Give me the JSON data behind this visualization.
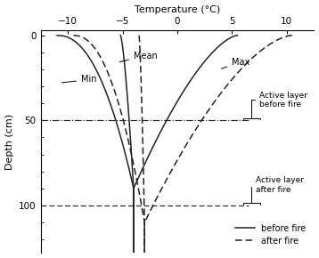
{
  "xlabel": "Temperature (°C)",
  "ylabel": "Depth (cm)",
  "xlim": [
    -12.5,
    12.5
  ],
  "ylim": [
    128,
    -3
  ],
  "xticks": [
    -10,
    -5,
    0,
    5,
    10
  ],
  "yticks": [
    0,
    50,
    100
  ],
  "active_layer_before_depth": 50,
  "active_layer_after_depth": 100,
  "permafrost_temp_before": -4.0,
  "permafrost_depth_before": 90,
  "permafrost_temp_after": -3.0,
  "permafrost_depth_after": 110,
  "bg_color": "#ffffff",
  "line_color": "#222222",
  "lw": 1.1,
  "min_before_surface": -11.0,
  "mean_before_surface": -5.2,
  "max_before_surface": 5.5,
  "min_after_surface": -9.5,
  "mean_after_surface": -3.5,
  "max_after_surface": 10.5
}
